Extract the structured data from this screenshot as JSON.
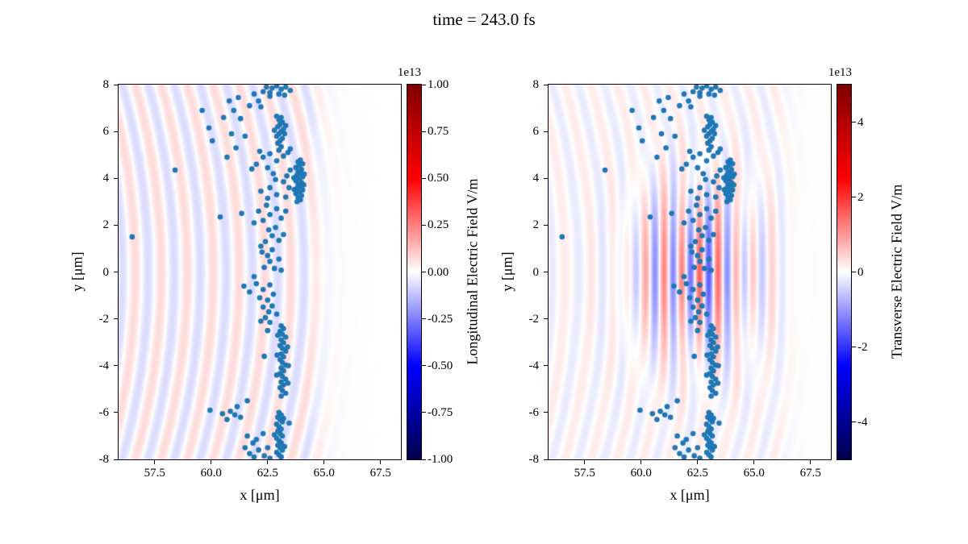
{
  "title": "time = 243.0 fs",
  "colors": {
    "background": "#ffffff",
    "axis": "#000000",
    "scatter": "#1f77b4"
  },
  "scatter": {
    "marker_color": "#1f77b4",
    "points": [
      [
        56.5,
        1.5
      ],
      [
        58.4,
        4.35
      ],
      [
        59.6,
        6.9
      ],
      [
        59.9,
        6.15
      ],
      [
        60.05,
        5.6
      ],
      [
        60.55,
        6.6
      ],
      [
        60.8,
        7.3
      ],
      [
        61.2,
        7.45
      ],
      [
        61.0,
        6.9
      ],
      [
        61.3,
        6.55
      ],
      [
        60.9,
        5.9
      ],
      [
        61.5,
        5.8
      ],
      [
        61.1,
        5.3
      ],
      [
        60.7,
        4.9
      ],
      [
        61.9,
        7.6
      ],
      [
        62.1,
        7.3
      ],
      [
        61.7,
        7.1
      ],
      [
        62.3,
        7.7
      ],
      [
        62.6,
        7.5
      ],
      [
        62.2,
        7.05
      ],
      [
        62.45,
        7.9
      ],
      [
        62.7,
        7.85
      ],
      [
        62.9,
        7.95
      ],
      [
        63.1,
        7.8
      ],
      [
        63.3,
        7.9
      ],
      [
        63.5,
        7.75
      ],
      [
        62.6,
        7.65
      ],
      [
        63.0,
        7.6
      ],
      [
        63.25,
        7.55
      ],
      [
        63.0,
        5.2
      ],
      [
        63.1,
        5.35
      ],
      [
        62.95,
        5.5
      ],
      [
        63.05,
        5.6
      ],
      [
        63.15,
        5.7
      ],
      [
        62.9,
        5.8
      ],
      [
        63.0,
        5.9
      ],
      [
        63.1,
        6.0
      ],
      [
        63.2,
        6.1
      ],
      [
        62.95,
        6.2
      ],
      [
        63.05,
        6.3
      ],
      [
        63.15,
        6.4
      ],
      [
        63.0,
        6.5
      ],
      [
        63.1,
        6.6
      ],
      [
        62.9,
        6.65
      ],
      [
        63.25,
        5.9
      ],
      [
        63.3,
        6.25
      ],
      [
        62.8,
        6.05
      ],
      [
        62.0,
        4.6
      ],
      [
        62.3,
        4.9
      ],
      [
        62.6,
        5.05
      ],
      [
        62.9,
        4.75
      ],
      [
        63.2,
        4.95
      ],
      [
        63.4,
        5.1
      ],
      [
        61.8,
        4.4
      ],
      [
        62.5,
        4.45
      ],
      [
        63.5,
        5.25
      ],
      [
        62.15,
        5.15
      ],
      [
        63.8,
        3.0
      ],
      [
        63.95,
        3.08
      ],
      [
        63.85,
        3.18
      ],
      [
        64.0,
        3.27
      ],
      [
        63.75,
        3.35
      ],
      [
        63.9,
        3.43
      ],
      [
        64.05,
        3.5
      ],
      [
        63.8,
        3.58
      ],
      [
        63.95,
        3.66
      ],
      [
        63.85,
        3.74
      ],
      [
        64.0,
        3.82
      ],
      [
        63.75,
        3.9
      ],
      [
        63.9,
        3.98
      ],
      [
        64.05,
        4.06
      ],
      [
        63.8,
        4.14
      ],
      [
        63.95,
        4.22
      ],
      [
        63.85,
        4.3
      ],
      [
        64.0,
        4.38
      ],
      [
        63.75,
        4.46
      ],
      [
        63.9,
        4.54
      ],
      [
        64.05,
        4.62
      ],
      [
        63.85,
        4.7
      ],
      [
        63.95,
        4.78
      ],
      [
        64.1,
        3.72
      ],
      [
        64.12,
        4.18
      ],
      [
        63.68,
        3.52
      ],
      [
        63.66,
        4.02
      ],
      [
        63.3,
        3.2
      ],
      [
        63.45,
        3.6
      ],
      [
        63.35,
        4.1
      ],
      [
        63.5,
        4.35
      ],
      [
        63.2,
        3.85
      ],
      [
        62.9,
        3.3
      ],
      [
        62.6,
        3.6
      ],
      [
        62.75,
        4.2
      ],
      [
        62.5,
        3.15
      ],
      [
        62.2,
        3.45
      ],
      [
        62.85,
        3.95
      ],
      [
        62.3,
        2.2
      ],
      [
        62.6,
        2.45
      ],
      [
        62.9,
        2.7
      ],
      [
        63.1,
        2.3
      ],
      [
        62.45,
        2.85
      ],
      [
        63.3,
        2.6
      ],
      [
        61.9,
        2.1
      ],
      [
        62.1,
        2.6
      ],
      [
        60.4,
        2.35
      ],
      [
        61.35,
        2.5
      ],
      [
        62.4,
        1.3
      ],
      [
        62.7,
        1.55
      ],
      [
        62.55,
        1.8
      ],
      [
        63.0,
        1.35
      ],
      [
        62.2,
        1.1
      ],
      [
        62.85,
        1.9
      ],
      [
        63.2,
        1.6
      ],
      [
        62.35,
        0.2
      ],
      [
        62.6,
        0.45
      ],
      [
        62.5,
        0.7
      ],
      [
        62.8,
        0.15
      ],
      [
        63.0,
        0.55
      ],
      [
        62.25,
        0.85
      ],
      [
        62.7,
        0.95
      ],
      [
        63.1,
        0.08
      ],
      [
        61.45,
        -0.6
      ],
      [
        61.7,
        -0.85
      ],
      [
        62.0,
        -0.5
      ],
      [
        62.3,
        -0.75
      ],
      [
        62.6,
        -0.55
      ],
      [
        62.15,
        -1.1
      ],
      [
        62.5,
        -1.2
      ],
      [
        61.9,
        -0.2
      ],
      [
        62.75,
        -0.95
      ],
      [
        62.3,
        -1.5
      ],
      [
        62.55,
        -1.7
      ],
      [
        62.4,
        -1.95
      ],
      [
        62.7,
        -1.45
      ],
      [
        62.2,
        -2.1
      ],
      [
        62.6,
        -2.15
      ],
      [
        62.9,
        -1.8
      ],
      [
        63.1,
        -2.3
      ],
      [
        63.2,
        -2.42
      ],
      [
        63.05,
        -2.54
      ],
      [
        63.15,
        -2.66
      ],
      [
        63.3,
        -2.78
      ],
      [
        63.1,
        -2.9
      ],
      [
        63.2,
        -3.02
      ],
      [
        63.05,
        -3.14
      ],
      [
        63.15,
        -3.26
      ],
      [
        63.3,
        -3.38
      ],
      [
        63.1,
        -3.5
      ],
      [
        63.2,
        -3.62
      ],
      [
        63.05,
        -3.74
      ],
      [
        63.15,
        -3.86
      ],
      [
        63.3,
        -3.98
      ],
      [
        63.1,
        -4.1
      ],
      [
        63.2,
        -4.22
      ],
      [
        63.05,
        -4.34
      ],
      [
        63.15,
        -4.46
      ],
      [
        63.3,
        -4.58
      ],
      [
        63.1,
        -4.7
      ],
      [
        63.2,
        -4.82
      ],
      [
        63.05,
        -4.94
      ],
      [
        63.15,
        -5.06
      ],
      [
        63.3,
        -5.18
      ],
      [
        63.1,
        -5.3
      ],
      [
        63.38,
        -3.2
      ],
      [
        63.42,
        -4.0
      ],
      [
        63.4,
        -4.75
      ],
      [
        62.95,
        -2.7
      ],
      [
        62.92,
        -3.55
      ],
      [
        62.9,
        -4.4
      ],
      [
        62.5,
        -2.5
      ],
      [
        62.35,
        -3.6
      ],
      [
        59.95,
        -5.9
      ],
      [
        60.85,
        -5.95
      ],
      [
        61.05,
        -6.1
      ],
      [
        60.7,
        -6.3
      ],
      [
        61.3,
        -6.2
      ],
      [
        61.15,
        -5.75
      ],
      [
        60.5,
        -6.05
      ],
      [
        61.6,
        -5.5
      ],
      [
        63.0,
        -6.0
      ],
      [
        63.1,
        -6.1
      ],
      [
        62.95,
        -6.2
      ],
      [
        63.05,
        -6.3
      ],
      [
        63.15,
        -6.4
      ],
      [
        62.9,
        -6.5
      ],
      [
        63.0,
        -6.6
      ],
      [
        63.1,
        -6.7
      ],
      [
        62.95,
        -6.8
      ],
      [
        63.05,
        -6.9
      ],
      [
        63.15,
        -7.0
      ],
      [
        62.9,
        -7.1
      ],
      [
        63.0,
        -7.2
      ],
      [
        63.1,
        -7.3
      ],
      [
        62.95,
        -7.4
      ],
      [
        63.05,
        -7.5
      ],
      [
        63.15,
        -7.6
      ],
      [
        62.9,
        -7.7
      ],
      [
        63.0,
        -7.8
      ],
      [
        63.1,
        -7.9
      ],
      [
        63.2,
        -6.25
      ],
      [
        62.8,
        -6.95
      ],
      [
        63.25,
        -7.45
      ],
      [
        61.6,
        -7.0
      ],
      [
        61.85,
        -7.3
      ],
      [
        62.1,
        -7.6
      ],
      [
        62.35,
        -7.85
      ],
      [
        61.7,
        -7.75
      ],
      [
        62.0,
        -7.15
      ],
      [
        62.3,
        -6.9
      ],
      [
        62.5,
        -7.5
      ],
      [
        61.5,
        -7.5
      ],
      [
        62.6,
        -7.95
      ],
      [
        61.9,
        -7.9
      ],
      [
        63.45,
        -6.45
      ]
    ]
  },
  "chart_data": [
    {
      "type": "heatmap",
      "name": "longitudinal-electric-field",
      "xlabel": "x [μm]",
      "ylabel": "y [μm]",
      "xlim": [
        55.9,
        68.4
      ],
      "ylim": [
        -8,
        8
      ],
      "xticks": [
        57.5,
        60.0,
        62.5,
        65.0,
        67.5
      ],
      "xticklabels": [
        "57.5",
        "60.0",
        "62.5",
        "65.0",
        "67.5"
      ],
      "yticks": [
        -8,
        -6,
        -4,
        -2,
        0,
        2,
        4,
        6,
        8
      ],
      "yticklabels": [
        "-8",
        "-6",
        "-4",
        "-2",
        "0",
        "2",
        "4",
        "6",
        "8"
      ],
      "grid": false,
      "colorbar": {
        "label": "Longitudinal Electric Field V/m",
        "offset": "1e13",
        "colormap": "seismic",
        "vmin": -1.0,
        "vmax": 1.0,
        "ticks": [
          1.0,
          0.75,
          0.5,
          0.25,
          0.0,
          -0.25,
          -0.5,
          -0.75,
          -1.0
        ],
        "ticklabels": [
          "1.00",
          "0.75",
          "0.50",
          "0.25",
          "0.00",
          "-0.25",
          "-0.50",
          "-0.75",
          "-1.00"
        ]
      },
      "field": {
        "description": "faint curved wakefield ripples, amplitude ~0.07e13 V/m",
        "wake": {
          "amplitude": 0.07,
          "wavelength": 1.15,
          "curvature": 0.018,
          "x_end": 64.3
        }
      }
    },
    {
      "type": "heatmap",
      "name": "transverse-electric-field",
      "xlabel": "x [μm]",
      "ylabel": "y [μm]",
      "xlim": [
        55.9,
        68.4
      ],
      "ylim": [
        -8,
        8
      ],
      "xticks": [
        57.5,
        60.0,
        62.5,
        65.0,
        67.5
      ],
      "xticklabels": [
        "57.5",
        "60.0",
        "62.5",
        "65.0",
        "67.5"
      ],
      "yticks": [
        -8,
        -6,
        -4,
        -2,
        0,
        2,
        4,
        6,
        8
      ],
      "yticklabels": [
        "-8",
        "-6",
        "-4",
        "-2",
        "0",
        "2",
        "4",
        "6",
        "8"
      ],
      "grid": false,
      "colorbar": {
        "label": "Transverse Electric Field V/m",
        "offset": "1e13",
        "colormap": "seismic",
        "vmin": -5,
        "vmax": 5,
        "ticks": [
          4,
          2,
          0,
          -2,
          -4
        ],
        "ticklabels": [
          "4",
          "2",
          "0",
          "-2",
          "-4"
        ]
      },
      "field": {
        "description": "laser pulse of vertical red/blue fringes centered near x=62.4, y=0 plus faint ripples, peak ~1.5e13 V/m",
        "wake": {
          "amplitude": 0.04,
          "wavelength": 1.15,
          "curvature": 0.018,
          "x_end": 66.0
        },
        "laser": {
          "amplitude": 0.3,
          "wavelength": 0.8,
          "x0": 62.4,
          "sx": 1.8,
          "sy": 2.4
        }
      }
    }
  ]
}
